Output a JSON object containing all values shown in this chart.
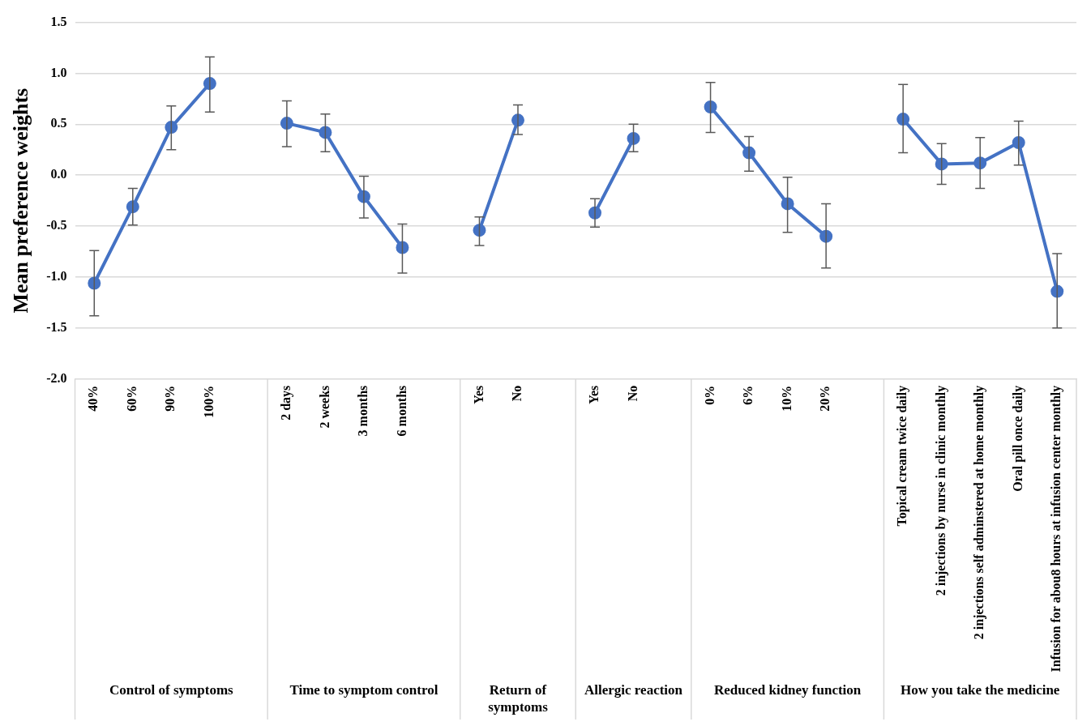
{
  "chart_data": {
    "type": "line",
    "ylabel": "Mean preference weights",
    "categories": [
      "40%",
      "60%",
      "90%",
      "100%",
      null,
      "2 days",
      "2 weeks",
      "3 months",
      "6 months",
      null,
      "Yes",
      "No",
      null,
      "Yes",
      "No",
      null,
      "0%",
      "6%",
      "10%",
      "20%",
      null,
      "Topical cream twice daily",
      "2 injections by nurse in clinic monthly",
      "2 injections self adminstered at home monthly",
      "Oral pill once daily",
      "Infusion for abou8 hours at infusion center monthly"
    ],
    "series": [
      {
        "color": "#4472c4",
        "values": [
          -1.06,
          -0.31,
          0.47,
          0.9,
          null,
          0.51,
          0.42,
          -0.21,
          -0.71,
          null,
          -0.54,
          0.54,
          null,
          -0.37,
          0.36,
          null,
          0.67,
          0.22,
          -0.28,
          -0.6,
          null,
          0.55,
          0.11,
          0.12,
          0.32,
          -1.14
        ],
        "errors": [
          [
            -1.38,
            -0.74
          ],
          [
            -0.49,
            -0.13
          ],
          [
            0.25,
            0.68
          ],
          [
            0.62,
            1.16
          ],
          null,
          [
            0.28,
            0.73
          ],
          [
            0.23,
            0.6
          ],
          [
            -0.42,
            -0.01
          ],
          [
            -0.96,
            -0.48
          ],
          null,
          [
            -0.69,
            -0.41
          ],
          [
            0.4,
            0.69
          ],
          null,
          [
            -0.51,
            -0.23
          ],
          [
            0.23,
            0.5
          ],
          null,
          [
            0.42,
            0.91
          ],
          [
            0.04,
            0.38
          ],
          [
            -0.56,
            -0.02
          ],
          [
            -0.91,
            -0.28
          ],
          null,
          [
            0.22,
            0.89
          ],
          [
            -0.09,
            0.31
          ],
          [
            -0.13,
            0.37
          ],
          [
            0.1,
            0.53
          ],
          [
            -1.5,
            -0.77
          ]
        ]
      }
    ],
    "ylim": [
      -2.0,
      1.5
    ],
    "yticks": [
      {
        "value": -2,
        "label": "-2.0"
      },
      {
        "value": -1.5,
        "label": "-1.5"
      },
      {
        "value": -1,
        "label": "-1.0"
      },
      {
        "value": -0.5,
        "label": "-0.5"
      },
      {
        "value": 0,
        "label": "0.0"
      },
      {
        "value": 0.5,
        "label": "0.5"
      },
      {
        "value": 1,
        "label": "1.0"
      },
      {
        "value": 1.5,
        "label": "1.5"
      }
    ],
    "grid": "y",
    "marker": "circle",
    "line_style": "solid",
    "legend": false,
    "annotations": [
      "Control of symptoms",
      "Time to symptom control",
      "Return of symptoms",
      "Allergic reaction",
      "Reduced kidney function",
      "How you take the medicine"
    ]
  }
}
